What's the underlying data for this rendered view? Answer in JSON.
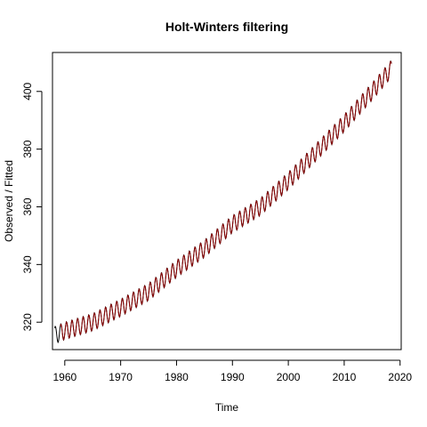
{
  "chart_data": {
    "type": "line",
    "title": "Holt-Winters filtering",
    "xlabel": "Time",
    "ylabel": "Observed / Fitted",
    "xlim": [
      1957.8,
      2020.2
    ],
    "ylim": [
      310.5,
      413.5
    ],
    "xticks": [
      1960,
      1970,
      1980,
      1990,
      2000,
      2010,
      2020
    ],
    "yticks": [
      320,
      340,
      360,
      380,
      400
    ],
    "grid": false,
    "legend": "none",
    "series": [
      {
        "role": "observed",
        "color": "#000000",
        "x_start": 1958.2,
        "x_end": 2018.5,
        "points_per_year": 12,
        "seasonal_amplitude": 3.0,
        "x": [
          1958.2,
          1960,
          1965,
          1970,
          1975,
          1980,
          1985,
          1990,
          1995,
          2000,
          2005,
          2010,
          2015,
          2018.5
        ],
        "trend": [
          315.5,
          317.0,
          320.0,
          325.0,
          330.5,
          338.5,
          345.5,
          354.0,
          360.0,
          369.0,
          379.0,
          389.0,
          400.0,
          408.0
        ]
      },
      {
        "role": "fitted",
        "color": "#8b0000",
        "x_start": 1959.2,
        "x_end": 2018.5,
        "points_per_year": 12,
        "seasonal_amplitude": 2.9,
        "x": [
          1959.2,
          1960,
          1965,
          1970,
          1975,
          1980,
          1985,
          1990,
          1995,
          2000,
          2005,
          2010,
          2015,
          2018.5
        ],
        "trend": [
          316.3,
          317.0,
          320.0,
          325.0,
          330.5,
          338.5,
          345.5,
          354.0,
          360.0,
          369.0,
          379.0,
          389.0,
          400.0,
          408.0
        ]
      }
    ]
  }
}
